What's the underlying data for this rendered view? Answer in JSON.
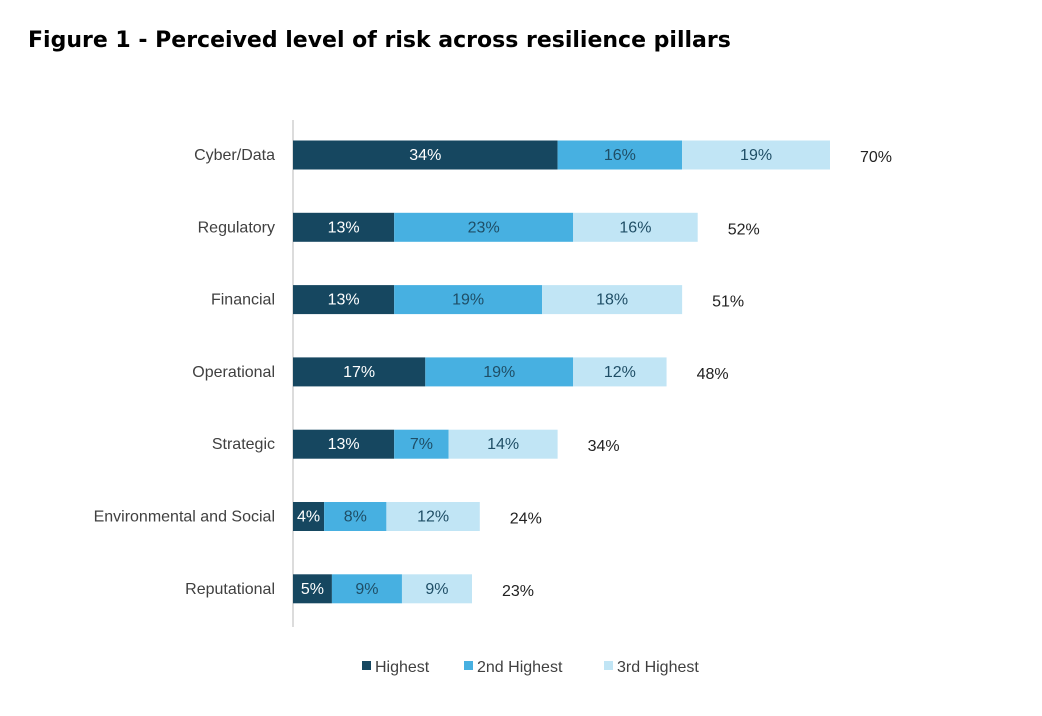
{
  "title": "Figure 1 - Perceived level of risk across resilience pillars",
  "colors": {
    "Highest": "#164760",
    "2nd Highest": "#47b0e1",
    "3rd Highest": "#c1e5f5",
    "axis": "#d0d0d0"
  },
  "chart_data": {
    "type": "bar",
    "orientation": "horizontal",
    "stacked": true,
    "categories": [
      "Cyber/Data",
      "Regulatory",
      "Financial",
      "Operational",
      "Strategic",
      "Environmental and Social",
      "Reputational"
    ],
    "series": [
      {
        "name": "Highest",
        "values": [
          34,
          13,
          13,
          17,
          13,
          4,
          5
        ]
      },
      {
        "name": "2nd Highest",
        "values": [
          16,
          23,
          19,
          19,
          7,
          8,
          9
        ]
      },
      {
        "name": "3rd Highest",
        "values": [
          19,
          16,
          18,
          12,
          14,
          12,
          9
        ]
      }
    ],
    "segment_labels": [
      [
        "34%",
        "16%",
        "19%"
      ],
      [
        "13%",
        "23%",
        "16%"
      ],
      [
        "13%",
        "19%",
        "18%"
      ],
      [
        "17%",
        "19%",
        "12%"
      ],
      [
        "13%",
        "7%",
        "14%"
      ],
      [
        "4%",
        "8%",
        "12%"
      ],
      [
        "5%",
        "9%",
        "9%"
      ]
    ],
    "totals": [
      70,
      52,
      51,
      48,
      34,
      24,
      23
    ],
    "total_labels": [
      "70%",
      "52%",
      "51%",
      "48%",
      "34%",
      "24%",
      "23%"
    ],
    "xlim": [
      0,
      70
    ],
    "grid": false,
    "legend": {
      "position": "bottom",
      "entries": [
        "Highest",
        "2nd Highest",
        "3rd Highest"
      ]
    }
  }
}
